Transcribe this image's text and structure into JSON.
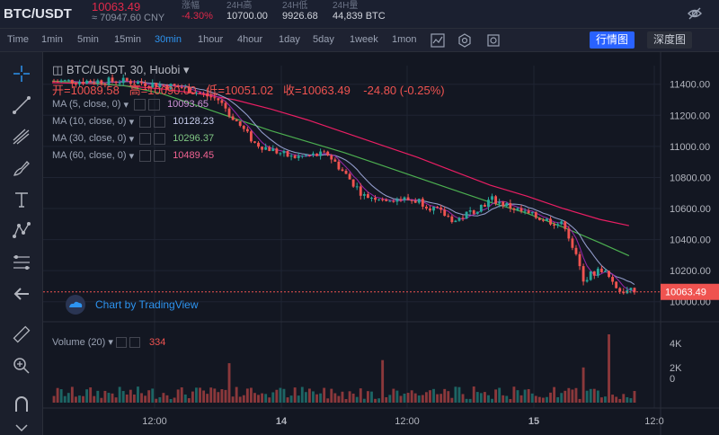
{
  "header": {
    "pair": "BTC/USDT",
    "price": "10063.49",
    "price_cny": "≈ 70947.60 CNY",
    "stats": [
      {
        "label": "涨幅",
        "value": "-4.30%",
        "color": "#e0294a"
      },
      {
        "label": "24H高",
        "value": "10700.00",
        "color": "#d1d4dc"
      },
      {
        "label": "24H低",
        "value": "9926.68",
        "color": "#d1d4dc"
      },
      {
        "label": "24H量",
        "value": "44,839 BTC",
        "color": "#d1d4dc"
      }
    ]
  },
  "toolbar": {
    "timeframes": [
      "Time",
      "1min",
      "5min",
      "15min",
      "30min",
      "1hour",
      "4hour",
      "1day",
      "5day",
      "1week",
      "1mon"
    ],
    "active_timeframe": "30min",
    "tab_market": "行情图",
    "tab_depth": "深度图"
  },
  "legend": {
    "symbol": "BTC/USDT, 30, Huobi",
    "ohlc": {
      "open_label": "开=",
      "open": "10089.58",
      "high_label": "高=",
      "high": "10090.00",
      "low_label": "低=",
      "low": "10051.02",
      "close_label": "收=",
      "close": "10063.49",
      "change": "-24.80 (-0.25%)"
    },
    "ma": [
      {
        "label": "MA (5, close, 0)",
        "value": "10093.65",
        "color": "#9c27b0"
      },
      {
        "label": "MA (10, close, 0)",
        "value": "10128.23",
        "color": "#9fa8da"
      },
      {
        "label": "MA (30, close, 0)",
        "value": "10296.37",
        "color": "#4caf50"
      },
      {
        "label": "MA (60, close, 0)",
        "value": "10489.45",
        "color": "#e91e63"
      }
    ],
    "volume_label": "Volume (20)",
    "volume_value": "334",
    "tv_logo_text": "Chart by TradingView"
  },
  "colors": {
    "up": "#26a69a",
    "down": "#ef5350",
    "bg": "#131722",
    "grid": "#1f2433"
  },
  "chart_data": {
    "type": "candlestick",
    "price_axis_ticks": [
      "11400.00",
      "11200.00",
      "11000.00",
      "10800.00",
      "10600.00",
      "10400.00",
      "10200.00",
      "10000.00"
    ],
    "ylim": [
      9900,
      11520
    ],
    "volume_axis_ticks": [
      "4K",
      "2K",
      "0"
    ],
    "time_axis_ticks": [
      "12:00",
      "14",
      "12:00",
      "15",
      "12:0"
    ],
    "last_price_label": "10063.49",
    "ma_series": [
      {
        "name": "MA 5",
        "color": "#9c27b0"
      },
      {
        "name": "MA 10",
        "color": "#9fa8da"
      },
      {
        "name": "MA 30",
        "color": "#4caf50"
      },
      {
        "name": "MA 60",
        "color": "#e91e63"
      }
    ],
    "ma60_end": [
      [
        0,
        11410
      ],
      [
        10,
        11405
      ],
      [
        20,
        11390
      ],
      [
        30,
        11370
      ],
      [
        40,
        11340
      ],
      [
        50,
        11300
      ],
      [
        60,
        11240
      ],
      [
        70,
        11170
      ],
      [
        80,
        11090
      ],
      [
        90,
        11010
      ],
      [
        100,
        10930
      ],
      [
        110,
        10840
      ],
      [
        120,
        10750
      ],
      [
        130,
        10680
      ],
      [
        140,
        10600
      ],
      [
        150,
        10530
      ],
      [
        158,
        10490
      ]
    ],
    "ma30_path": [
      [
        0,
        11420
      ],
      [
        10,
        11410
      ],
      [
        20,
        11390
      ],
      [
        30,
        11340
      ],
      [
        40,
        11260
      ],
      [
        50,
        11180
      ],
      [
        60,
        11100
      ],
      [
        70,
        11030
      ],
      [
        80,
        10960
      ],
      [
        90,
        10880
      ],
      [
        100,
        10800
      ],
      [
        110,
        10720
      ],
      [
        120,
        10640
      ],
      [
        130,
        10570
      ],
      [
        140,
        10480
      ],
      [
        150,
        10380
      ],
      [
        158,
        10296
      ]
    ]
  }
}
